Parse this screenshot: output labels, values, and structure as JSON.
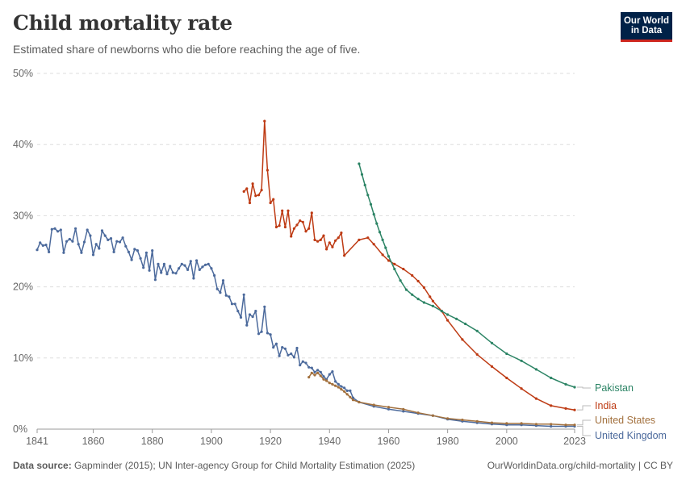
{
  "header": {
    "title": "Child mortality rate",
    "subtitle": "Estimated share of newborns who die before reaching the age of five.",
    "logo_line1": "Our World",
    "logo_line2": "in Data"
  },
  "footer": {
    "source_label": "Data source:",
    "source_text": "Gapminder (2015); UN Inter-agency Group for Child Mortality Estimation (2025)",
    "credit": "OurWorldinData.org/child-mortality | CC BY"
  },
  "colors": {
    "Pakistan": "#2c8465",
    "India": "#be3b14",
    "United States": "#a2703d",
    "United Kingdom": "#4c6a9c",
    "grid": "#dddddd",
    "axis_text": "#666666"
  },
  "chart_data": {
    "type": "line",
    "xlim": [
      1841,
      2023
    ],
    "ylim": [
      0,
      50
    ],
    "x_ticks": [
      "1841",
      "1860",
      "1880",
      "1900",
      "1920",
      "1940",
      "1960",
      "1980",
      "2000",
      "2023"
    ],
    "y_ticks": [
      "0%",
      "10%",
      "20%",
      "30%",
      "40%",
      "50%"
    ],
    "grid": "horizontal dashed",
    "legend": "labels at right end of lines",
    "series": [
      {
        "name": "United Kingdom",
        "points": [
          [
            1841,
            25.2
          ],
          [
            1842,
            26.2
          ],
          [
            1843,
            25.8
          ],
          [
            1844,
            25.9
          ],
          [
            1845,
            24.9
          ],
          [
            1846,
            28.1
          ],
          [
            1847,
            28.2
          ],
          [
            1848,
            27.8
          ],
          [
            1849,
            28.0
          ],
          [
            1850,
            24.8
          ],
          [
            1851,
            26.4
          ],
          [
            1852,
            26.7
          ],
          [
            1853,
            26.4
          ],
          [
            1854,
            28.2
          ],
          [
            1855,
            26.0
          ],
          [
            1856,
            24.8
          ],
          [
            1857,
            26.3
          ],
          [
            1858,
            28.0
          ],
          [
            1859,
            27.2
          ],
          [
            1860,
            24.5
          ],
          [
            1861,
            26.0
          ],
          [
            1862,
            25.4
          ],
          [
            1863,
            27.9
          ],
          [
            1864,
            27.2
          ],
          [
            1865,
            26.6
          ],
          [
            1866,
            26.8
          ],
          [
            1867,
            24.9
          ],
          [
            1868,
            26.4
          ],
          [
            1869,
            26.3
          ],
          [
            1870,
            26.9
          ],
          [
            1871,
            25.7
          ],
          [
            1872,
            24.9
          ],
          [
            1873,
            23.8
          ],
          [
            1874,
            25.3
          ],
          [
            1875,
            25.1
          ],
          [
            1876,
            24.0
          ],
          [
            1877,
            22.7
          ],
          [
            1878,
            24.8
          ],
          [
            1879,
            22.3
          ],
          [
            1880,
            25.1
          ],
          [
            1881,
            21.0
          ],
          [
            1882,
            23.2
          ],
          [
            1883,
            22.0
          ],
          [
            1884,
            23.2
          ],
          [
            1885,
            21.8
          ],
          [
            1886,
            22.9
          ],
          [
            1887,
            22.0
          ],
          [
            1888,
            21.9
          ],
          [
            1889,
            22.6
          ],
          [
            1890,
            23.2
          ],
          [
            1891,
            23.0
          ],
          [
            1892,
            22.4
          ],
          [
            1893,
            23.6
          ],
          [
            1894,
            21.2
          ],
          [
            1895,
            23.7
          ],
          [
            1896,
            22.4
          ],
          [
            1897,
            22.8
          ],
          [
            1898,
            23.1
          ],
          [
            1899,
            23.2
          ],
          [
            1900,
            22.6
          ],
          [
            1901,
            21.6
          ],
          [
            1902,
            19.7
          ],
          [
            1903,
            19.2
          ],
          [
            1904,
            20.9
          ],
          [
            1905,
            18.8
          ],
          [
            1906,
            18.6
          ],
          [
            1907,
            17.6
          ],
          [
            1908,
            17.6
          ],
          [
            1909,
            16.6
          ],
          [
            1910,
            15.7
          ],
          [
            1911,
            18.9
          ],
          [
            1912,
            14.6
          ],
          [
            1913,
            16.1
          ],
          [
            1914,
            15.8
          ],
          [
            1915,
            16.6
          ],
          [
            1916,
            13.4
          ],
          [
            1917,
            13.7
          ],
          [
            1918,
            17.2
          ],
          [
            1919,
            13.5
          ],
          [
            1920,
            13.3
          ],
          [
            1921,
            11.5
          ],
          [
            1922,
            12.0
          ],
          [
            1923,
            10.3
          ],
          [
            1924,
            11.5
          ],
          [
            1925,
            11.3
          ],
          [
            1926,
            10.4
          ],
          [
            1927,
            10.6
          ],
          [
            1928,
            10.1
          ],
          [
            1929,
            11.4
          ],
          [
            1930,
            9.0
          ],
          [
            1931,
            9.5
          ],
          [
            1932,
            9.3
          ],
          [
            1933,
            8.7
          ],
          [
            1934,
            8.6
          ],
          [
            1935,
            8.0
          ],
          [
            1936,
            8.3
          ],
          [
            1937,
            8.0
          ],
          [
            1938,
            7.4
          ],
          [
            1939,
            7.0
          ],
          [
            1940,
            7.7
          ],
          [
            1941,
            8.1
          ],
          [
            1942,
            6.7
          ],
          [
            1943,
            6.3
          ],
          [
            1944,
            6.0
          ],
          [
            1945,
            5.8
          ],
          [
            1946,
            5.4
          ],
          [
            1947,
            5.4
          ],
          [
            1948,
            4.4
          ],
          [
            1950,
            3.8
          ],
          [
            1955,
            3.2
          ],
          [
            1960,
            2.8
          ],
          [
            1965,
            2.5
          ],
          [
            1970,
            2.2
          ],
          [
            1975,
            1.9
          ],
          [
            1980,
            1.4
          ],
          [
            1985,
            1.1
          ],
          [
            1990,
            0.9
          ],
          [
            1995,
            0.7
          ],
          [
            2000,
            0.6
          ],
          [
            2005,
            0.6
          ],
          [
            2010,
            0.5
          ],
          [
            2015,
            0.4
          ],
          [
            2020,
            0.4
          ],
          [
            2023,
            0.4
          ]
        ]
      },
      {
        "name": "United States",
        "points": [
          [
            1933,
            7.3
          ],
          [
            1934,
            7.9
          ],
          [
            1935,
            7.6
          ],
          [
            1936,
            7.9
          ],
          [
            1937,
            7.5
          ],
          [
            1938,
            7.0
          ],
          [
            1939,
            6.8
          ],
          [
            1940,
            6.5
          ],
          [
            1941,
            6.3
          ],
          [
            1942,
            6.1
          ],
          [
            1943,
            5.9
          ],
          [
            1944,
            5.6
          ],
          [
            1945,
            5.3
          ],
          [
            1946,
            4.9
          ],
          [
            1947,
            4.5
          ],
          [
            1948,
            4.1
          ],
          [
            1950,
            3.8
          ],
          [
            1955,
            3.4
          ],
          [
            1960,
            3.1
          ],
          [
            1965,
            2.8
          ],
          [
            1970,
            2.3
          ],
          [
            1975,
            1.9
          ],
          [
            1980,
            1.5
          ],
          [
            1985,
            1.3
          ],
          [
            1990,
            1.1
          ],
          [
            1995,
            0.9
          ],
          [
            2000,
            0.8
          ],
          [
            2005,
            0.8
          ],
          [
            2010,
            0.7
          ],
          [
            2015,
            0.7
          ],
          [
            2020,
            0.6
          ],
          [
            2023,
            0.6
          ]
        ]
      },
      {
        "name": "India",
        "points": [
          [
            1911,
            33.4
          ],
          [
            1912,
            33.8
          ],
          [
            1913,
            31.8
          ],
          [
            1914,
            34.5
          ],
          [
            1915,
            32.8
          ],
          [
            1916,
            32.9
          ],
          [
            1917,
            33.6
          ],
          [
            1918,
            43.3
          ],
          [
            1919,
            36.4
          ],
          [
            1920,
            31.8
          ],
          [
            1921,
            32.3
          ],
          [
            1922,
            28.4
          ],
          [
            1923,
            28.6
          ],
          [
            1924,
            30.7
          ],
          [
            1925,
            28.4
          ],
          [
            1926,
            30.7
          ],
          [
            1927,
            27.1
          ],
          [
            1928,
            28.2
          ],
          [
            1929,
            28.7
          ],
          [
            1930,
            29.3
          ],
          [
            1931,
            29.1
          ],
          [
            1932,
            27.8
          ],
          [
            1933,
            28.2
          ],
          [
            1934,
            30.4
          ],
          [
            1935,
            26.6
          ],
          [
            1936,
            26.4
          ],
          [
            1937,
            26.6
          ],
          [
            1938,
            27.2
          ],
          [
            1939,
            25.3
          ],
          [
            1940,
            26.2
          ],
          [
            1941,
            25.6
          ],
          [
            1942,
            26.5
          ],
          [
            1943,
            26.9
          ],
          [
            1944,
            27.6
          ],
          [
            1945,
            24.4
          ],
          [
            1950,
            26.6
          ],
          [
            1953,
            26.9
          ],
          [
            1955,
            26.0
          ],
          [
            1958,
            24.5
          ],
          [
            1960,
            23.7
          ],
          [
            1962,
            23.2
          ],
          [
            1965,
            22.5
          ],
          [
            1968,
            21.6
          ],
          [
            1970,
            20.8
          ],
          [
            1972,
            19.9
          ],
          [
            1974,
            18.6
          ],
          [
            1975,
            18.0
          ],
          [
            1978,
            16.6
          ],
          [
            1980,
            15.3
          ],
          [
            1985,
            12.6
          ],
          [
            1990,
            10.5
          ],
          [
            1995,
            8.8
          ],
          [
            2000,
            7.2
          ],
          [
            2005,
            5.7
          ],
          [
            2010,
            4.3
          ],
          [
            2015,
            3.3
          ],
          [
            2020,
            2.9
          ],
          [
            2023,
            2.7
          ]
        ]
      },
      {
        "name": "Pakistan",
        "points": [
          [
            1950,
            37.3
          ],
          [
            1951,
            35.8
          ],
          [
            1952,
            34.3
          ],
          [
            1953,
            32.9
          ],
          [
            1954,
            31.6
          ],
          [
            1955,
            30.2
          ],
          [
            1956,
            28.9
          ],
          [
            1957,
            27.7
          ],
          [
            1958,
            26.6
          ],
          [
            1959,
            25.5
          ],
          [
            1960,
            24.3
          ],
          [
            1962,
            22.5
          ],
          [
            1964,
            20.9
          ],
          [
            1966,
            19.6
          ],
          [
            1968,
            18.9
          ],
          [
            1970,
            18.3
          ],
          [
            1972,
            17.8
          ],
          [
            1975,
            17.3
          ],
          [
            1978,
            16.6
          ],
          [
            1980,
            16.1
          ],
          [
            1983,
            15.5
          ],
          [
            1986,
            14.8
          ],
          [
            1990,
            13.8
          ],
          [
            1995,
            12.1
          ],
          [
            2000,
            10.6
          ],
          [
            2005,
            9.6
          ],
          [
            2010,
            8.4
          ],
          [
            2015,
            7.2
          ],
          [
            2020,
            6.3
          ],
          [
            2023,
            5.9
          ]
        ]
      }
    ]
  }
}
